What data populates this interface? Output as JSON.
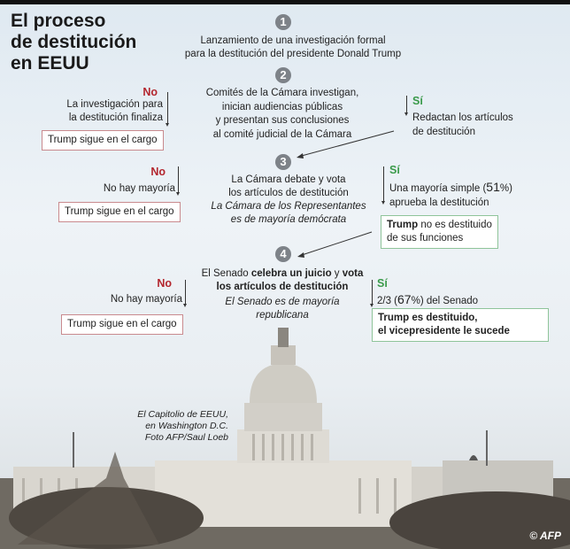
{
  "title": [
    "El proceso",
    "de destitución",
    "en EEUU"
  ],
  "steps": [
    {
      "number": "1",
      "lines": [
        "Lanzamiento de una investigación formal",
        "para la destitución del presidente  Donald Trump"
      ]
    },
    {
      "number": "2",
      "lines": [
        "Comités de la Cámara investigan,",
        "inician audiencias públicas",
        "y presentan sus conclusiones",
        "al comité judicial de la Cámara"
      ],
      "no": {
        "label": "No",
        "lines": [
          "La investigación para",
          "la destitución finaliza"
        ],
        "result": "Trump sigue en el cargo"
      },
      "yes": {
        "label": "Sí",
        "lines": [
          "Redactan los artículos",
          "de destitución"
        ]
      }
    },
    {
      "number": "3",
      "lines": [
        "La Cámara debate y vota",
        "los artículos de destitución"
      ],
      "note": [
        "La Cámara de los Representantes",
        "es de mayoría demócrata"
      ],
      "no": {
        "label": "No",
        "lines": [
          "No hay mayoría"
        ],
        "result": "Trump sigue en el cargo"
      },
      "yes": {
        "label": "Sí",
        "line1_pre": "Una mayoría simple (",
        "line1_pct": "51",
        "line1_post": "%)",
        "line2": "aprueba la destitución",
        "result_bold": "Trump",
        "result_rest": " no es destituido",
        "result_line2": "de sus funciones"
      }
    },
    {
      "number": "4",
      "line1_pre": "El Senado ",
      "line1_b1": "celebra un juicio",
      "line1_mid": " y ",
      "line1_b2": "vota",
      "line2": "los artículos de destitución",
      "note": [
        "El Senado es de mayoría",
        "republicana"
      ],
      "no": {
        "label": "No",
        "lines": [
          "No hay mayoría"
        ],
        "result": "Trump sigue en el cargo"
      },
      "yes": {
        "label": "Sí",
        "line1_pre": "2/3 (",
        "line1_pct": "67",
        "line1_post": "%) del Senado",
        "result": [
          "Trump es destituido,",
          "el vicepresidente le sucede"
        ]
      }
    }
  ],
  "photo_caption": [
    "El Capitolio de EEUU,",
    "en Washington D.C.",
    "Foto AFP/Saul Loeb"
  ],
  "credit": "© AFP",
  "colors": {
    "no": "#b3262e",
    "yes": "#3a9a4a",
    "step_circle": "#7d8288"
  }
}
